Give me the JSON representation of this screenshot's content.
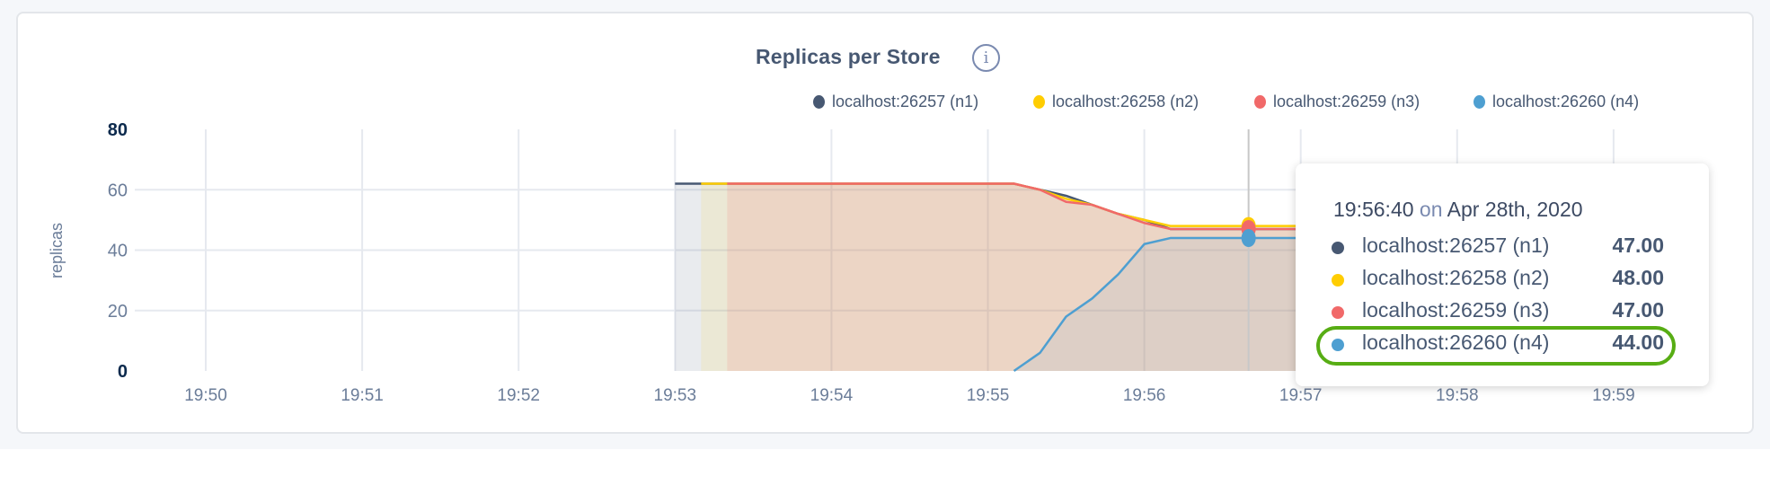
{
  "chart_data": {
    "type": "area",
    "title": "Replicas per Store",
    "ylabel": "replicas",
    "xlabel": "",
    "ylim": [
      0,
      80
    ],
    "yticks": [
      "0",
      "20",
      "40",
      "60",
      "80"
    ],
    "xticks": [
      "19:50",
      "19:51",
      "19:52",
      "19:53",
      "19:54",
      "19:55",
      "19:56",
      "19:57",
      "19:58",
      "19:59"
    ],
    "grid": true,
    "legend_position": "top-right",
    "x": [
      "19:53:00",
      "19:53:10",
      "19:53:20",
      "19:53:30",
      "19:53:40",
      "19:53:50",
      "19:54:00",
      "19:54:10",
      "19:54:20",
      "19:54:30",
      "19:54:40",
      "19:54:50",
      "19:55:00",
      "19:55:10",
      "19:55:20",
      "19:55:30",
      "19:55:40",
      "19:55:50",
      "19:56:00",
      "19:56:10",
      "19:56:20",
      "19:56:30",
      "19:56:40",
      "19:56:50",
      "19:57:00"
    ],
    "series": [
      {
        "name": "localhost:26257 (n1)",
        "color": "#475872",
        "values": [
          62,
          62,
          62,
          62,
          62,
          62,
          62,
          62,
          62,
          62,
          62,
          62,
          62,
          62,
          60,
          58,
          55,
          52,
          50,
          47,
          47,
          47,
          47,
          47,
          47
        ]
      },
      {
        "name": "localhost:26258 (n2)",
        "color": "#ffcd02",
        "values": [
          null,
          62,
          62,
          62,
          62,
          62,
          62,
          62,
          62,
          62,
          62,
          62,
          62,
          62,
          60,
          57,
          55,
          52,
          50,
          48,
          48,
          48,
          48,
          48,
          48
        ]
      },
      {
        "name": "localhost:26259 (n3)",
        "color": "#f16969",
        "values": [
          null,
          null,
          62,
          62,
          62,
          62,
          62,
          62,
          62,
          62,
          62,
          62,
          62,
          62,
          60,
          56,
          55,
          52,
          49,
          47,
          47,
          47,
          47,
          47,
          47
        ]
      },
      {
        "name": "localhost:26260 (n4)",
        "color": "#4e9fd1",
        "values": [
          null,
          null,
          null,
          null,
          null,
          null,
          null,
          null,
          null,
          null,
          null,
          null,
          null,
          0,
          6,
          18,
          24,
          32,
          42,
          44,
          44,
          44,
          44,
          44,
          44
        ]
      }
    ]
  },
  "info_icon": "info-icon",
  "tooltip": {
    "time": "19:56:40",
    "on": "on",
    "date": "Apr 28th, 2020",
    "highlighted_row": 3,
    "rows": [
      {
        "label": "localhost:26257 (n1)",
        "value": "47.00",
        "color": "#475872"
      },
      {
        "label": "localhost:26258 (n2)",
        "value": "48.00",
        "color": "#ffcd02"
      },
      {
        "label": "localhost:26259 (n3)",
        "value": "47.00",
        "color": "#f16969"
      },
      {
        "label": "localhost:26260 (n4)",
        "value": "44.00",
        "color": "#4e9fd1"
      }
    ]
  }
}
